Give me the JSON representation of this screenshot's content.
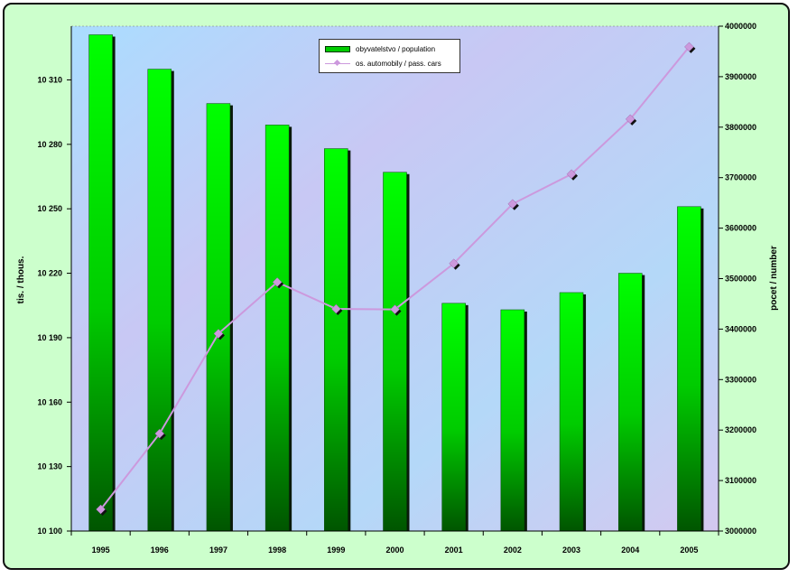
{
  "chart_data": {
    "type": "bar",
    "categories": [
      "1995",
      "1996",
      "1997",
      "1998",
      "1999",
      "2000",
      "2001",
      "2002",
      "2003",
      "2004",
      "2005"
    ],
    "series": [
      {
        "name": "obyvatelstvo / population",
        "type": "bar",
        "axis": "left",
        "color": "#00cc00",
        "values": [
          10331,
          10315,
          10299,
          10289,
          10278,
          10267,
          10206,
          10203,
          10211,
          10220,
          10251
        ]
      },
      {
        "name": "os. automobily / pass. cars",
        "type": "line",
        "axis": "right",
        "color": "#cc99dd",
        "values": [
          3043000,
          3193000,
          3391000,
          3493000,
          3440000,
          3439000,
          3530000,
          3648000,
          3707000,
          3816000,
          3959000
        ]
      }
    ],
    "ylabel": "tis. / thous.",
    "y2label": "pocet / number",
    "ylim": [
      10100,
      10335
    ],
    "y2lim": [
      3000000,
      4000000
    ],
    "yticks": [
      "10 100",
      "10 130",
      "10 160",
      "10 190",
      "10 220",
      "10 250",
      "10 280",
      "10 310"
    ],
    "yticks_values": [
      10100,
      10130,
      10160,
      10190,
      10220,
      10250,
      10280,
      10310
    ],
    "y2ticks": [
      "3000000",
      "3100000",
      "3200000",
      "3300000",
      "3400000",
      "3500000",
      "3600000",
      "3700000",
      "3800000",
      "3900000",
      "4000000"
    ],
    "y2ticks_values": [
      3000000,
      3100000,
      3200000,
      3300000,
      3400000,
      3500000,
      3600000,
      3700000,
      3800000,
      3900000,
      4000000
    ],
    "legend_position": "top-center",
    "grid": false
  }
}
